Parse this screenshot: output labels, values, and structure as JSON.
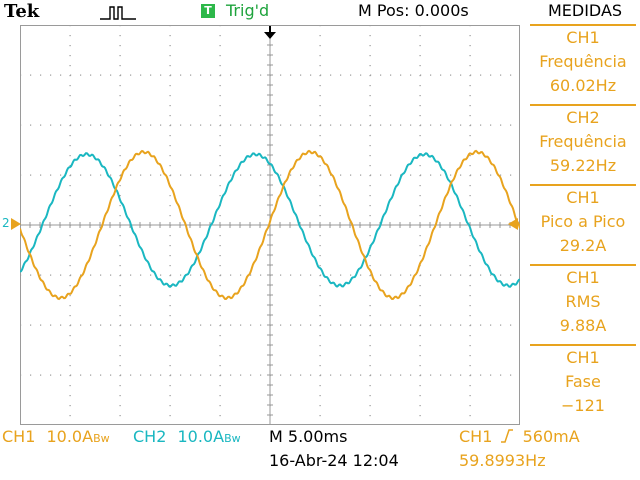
{
  "header": {
    "brand": "Tek",
    "trigger_box": "T",
    "trigger_status": "Trig'd",
    "m_pos": "M Pos: 0.000s"
  },
  "colors": {
    "ch1": "#e8a31e",
    "ch2": "#1ab7c1",
    "grid": "#9a9a9a",
    "trigger": "#2db84a"
  },
  "menu": {
    "title": "MEDIDAS",
    "items": [
      {
        "channel": "CH1",
        "name": "Frequência",
        "value": "60.02Hz"
      },
      {
        "channel": "CH2",
        "name": "Frequência",
        "value": "59.22Hz"
      },
      {
        "channel": "CH1",
        "name": "Pico a Pico",
        "value": "29.2A"
      },
      {
        "channel": "CH1",
        "name": "RMS",
        "value": "9.88A"
      },
      {
        "channel": "CH1",
        "name": "Fase",
        "value": "−121"
      }
    ]
  },
  "readout": {
    "ch1_label": "CH1",
    "ch1_scale": "10.0A",
    "ch1_bw": "Bw",
    "ch2_label": "CH2",
    "ch2_scale": "10.0A",
    "ch2_bw": "Bw",
    "timebase": "M 5.00ms",
    "date": "16-Abr-24 12:04",
    "trigger_source": "CH1",
    "trigger_slope_icon": "rising-edge-icon",
    "trigger_level": "560mA",
    "trigger_frequency": "59.8993Hz"
  },
  "markers": {
    "ch2_marker": "2",
    "ch1_level_marker_icon": "left-arrow-icon",
    "trigger_position_icon": "down-arrow-icon"
  },
  "waveforms": {
    "ch1": {
      "frequency_hz": 60.02,
      "peak_to_peak_a": 29.2,
      "phase_deg": -121
    },
    "ch2": {
      "frequency_hz": 59.22
    }
  }
}
